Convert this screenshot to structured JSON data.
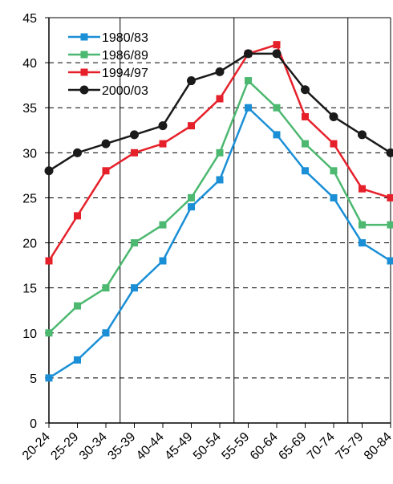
{
  "chart_data": {
    "type": "line",
    "title": "",
    "xlabel": "",
    "ylabel": "",
    "categories": [
      "20-24",
      "25-29",
      "30-34",
      "35-39",
      "40-44",
      "45-49",
      "50-54",
      "55-59",
      "60-64",
      "65-69",
      "70-74",
      "75-79",
      "80-84"
    ],
    "ylim": [
      0,
      45
    ],
    "yticks": [
      0,
      5,
      10,
      15,
      20,
      25,
      30,
      35,
      40,
      45
    ],
    "grid": "horizontal dashed",
    "legend_position": "top-left",
    "series": [
      {
        "name": "1980/83",
        "color": "#1a8fd6",
        "marker": "square",
        "values": [
          5,
          7,
          10,
          15,
          18,
          24,
          27,
          35,
          32,
          28,
          25,
          20,
          18
        ]
      },
      {
        "name": "1986/89",
        "color": "#4cb870",
        "marker": "square",
        "values": [
          10,
          13,
          15,
          20,
          22,
          25,
          30,
          38,
          35,
          31,
          28,
          22,
          22
        ]
      },
      {
        "name": "1994/97",
        "color": "#e6202a",
        "marker": "square",
        "values": [
          18,
          23,
          28,
          30,
          31,
          33,
          36,
          41,
          42,
          34,
          31,
          26,
          25
        ]
      },
      {
        "name": "2000/03",
        "color": "#1a1a1a",
        "marker": "circle",
        "values": [
          28,
          30,
          31,
          32,
          33,
          38,
          39,
          41,
          41,
          37,
          34,
          32,
          30
        ]
      }
    ]
  }
}
